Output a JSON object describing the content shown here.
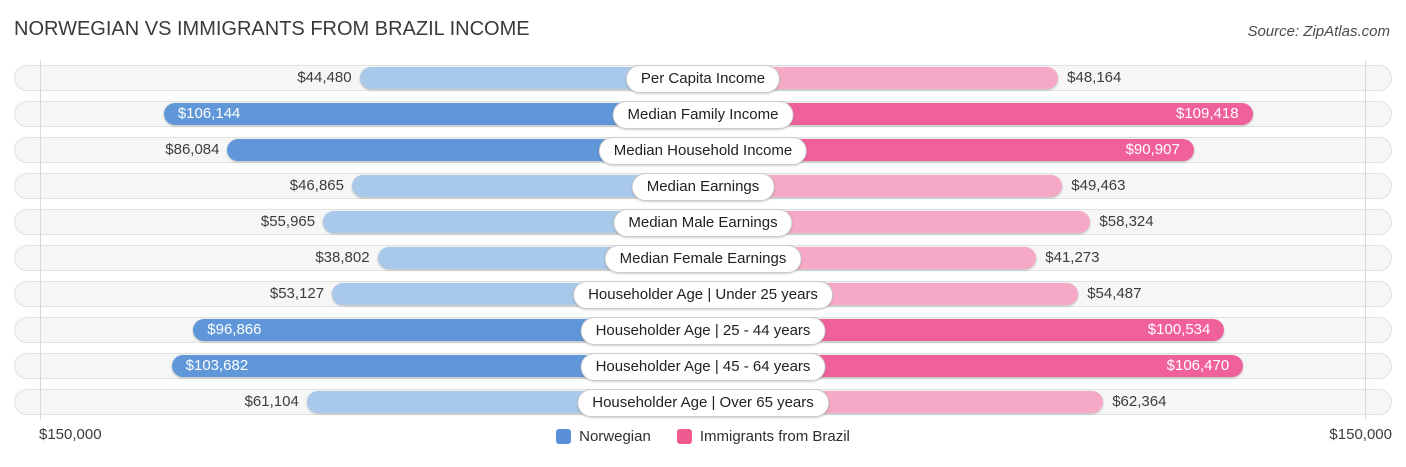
{
  "title": "NORWEGIAN VS IMMIGRANTS FROM BRAZIL INCOME",
  "source": "Source: ZipAtlas.com",
  "axis": {
    "left_label": "$150,000",
    "right_label": "$150,000",
    "max_value": 150000
  },
  "legend": [
    {
      "label": "Norwegian",
      "color": "#5b8fd8"
    },
    {
      "label": "Immigrants from Brazil",
      "color": "#ef5a91"
    }
  ],
  "colors": {
    "norwegian_bar": "#5f97d8",
    "norwegian_bar_light": "#a9c9ea",
    "brazil_bar": "#f0619b",
    "brazil_bar_light": "#f6a9c6",
    "track_bg": "#f6f6f6",
    "track_border": "#e1e1e1",
    "gridline": "#d8d8d8"
  },
  "chart_data": {
    "type": "bar",
    "orientation": "horizontal-diverging",
    "title": "NORWEGIAN VS IMMIGRANTS FROM BRAZIL INCOME",
    "axis_max": 150000,
    "axis_max_label": "$150,000",
    "legend_position": "bottom",
    "grid": "edge-gridlines-only",
    "categories": [
      "Per Capita Income",
      "Median Family Income",
      "Median Household Income",
      "Median Earnings",
      "Median Male Earnings",
      "Median Female Earnings",
      "Householder Age | Under 25 years",
      "Householder Age | 25 - 44 years",
      "Householder Age | 45 - 64 years",
      "Householder Age | Over 65 years"
    ],
    "emphasized": [
      false,
      true,
      true,
      false,
      false,
      false,
      false,
      true,
      true,
      false
    ],
    "series": [
      {
        "name": "Norwegian",
        "side": "left",
        "values": [
          44480,
          106144,
          86084,
          46865,
          55965,
          38802,
          53127,
          96866,
          103682,
          61104
        ],
        "labels": [
          "$44,480",
          "$106,144",
          "$86,084",
          "$46,865",
          "$55,965",
          "$38,802",
          "$53,127",
          "$96,866",
          "$103,682",
          "$61,104"
        ],
        "label_inside": [
          false,
          true,
          false,
          false,
          false,
          false,
          false,
          true,
          true,
          false
        ]
      },
      {
        "name": "Immigrants from Brazil",
        "side": "right",
        "values": [
          48164,
          109418,
          90907,
          49463,
          58324,
          41273,
          54487,
          100534,
          106470,
          62364
        ],
        "labels": [
          "$48,164",
          "$109,418",
          "$90,907",
          "$49,463",
          "$58,324",
          "$41,273",
          "$54,487",
          "$100,534",
          "$106,470",
          "$62,364"
        ],
        "label_inside": [
          false,
          true,
          true,
          false,
          false,
          false,
          false,
          true,
          true,
          false
        ]
      }
    ]
  }
}
